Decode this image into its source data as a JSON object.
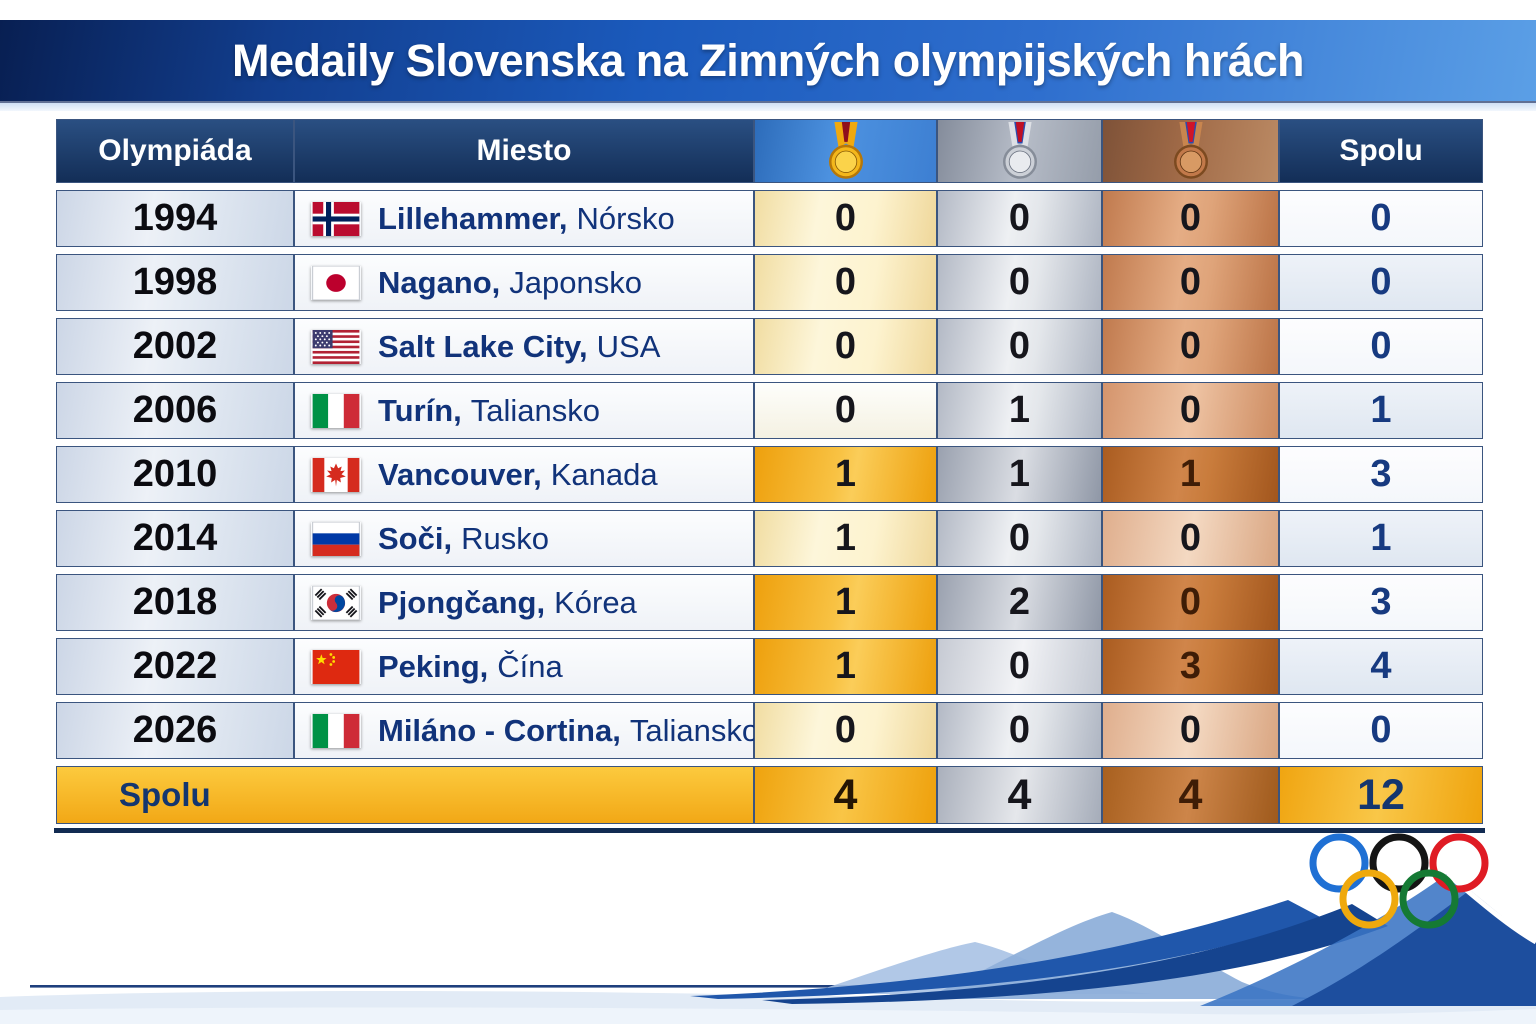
{
  "title": "Medaily Slovenska na Zimných olympijských hrách",
  "table": {
    "header": {
      "olympiad": "Olympiáda",
      "place": "Miesto",
      "total": "Spolu",
      "icons": {
        "gold": "gold-medal-icon",
        "silver": "silver-medal-icon",
        "bronze": "bronze-medal-icon"
      }
    },
    "rows": [
      {
        "year": "1994",
        "flag": "norway",
        "city": "Lillehammer",
        "country": "Nórsko",
        "gold": "0",
        "silver": "0",
        "bronze": "0",
        "total": "0",
        "tones": {
          "gold": "pale",
          "silver": "soft",
          "bronze": "soft"
        }
      },
      {
        "year": "1998",
        "flag": "japan",
        "city": "Nagano",
        "country": "Japonsko",
        "gold": "0",
        "silver": "0",
        "bronze": "0",
        "total": "0",
        "tones": {
          "gold": "pale",
          "silver": "soft",
          "bronze": "soft"
        }
      },
      {
        "year": "2002",
        "flag": "usa",
        "city": "Salt Lake City",
        "country": "USA",
        "gold": "0",
        "silver": "0",
        "bronze": "0",
        "total": "0",
        "tones": {
          "gold": "pale",
          "silver": "soft",
          "bronze": "soft"
        }
      },
      {
        "year": "2006",
        "flag": "italy",
        "city": "Turín",
        "country": "Taliansko",
        "gold": "0",
        "silver": "1",
        "bronze": "0",
        "total": "1",
        "tones": {
          "gold": "white",
          "silver": "soft",
          "bronze": "softlight"
        }
      },
      {
        "year": "2010",
        "flag": "canada",
        "city": "Vancouver",
        "country": "Kanada",
        "gold": "1",
        "silver": "1",
        "bronze": "1",
        "total": "3",
        "tones": {
          "gold": "strong",
          "silver": "dark",
          "bronze": "strong"
        }
      },
      {
        "year": "2014",
        "flag": "russia",
        "city": "Soči",
        "country": "Rusko",
        "gold": "1",
        "silver": "0",
        "bronze": "0",
        "total": "1",
        "tones": {
          "gold": "pale",
          "silver": "soft",
          "bronze": "pale"
        }
      },
      {
        "year": "2018",
        "flag": "south-korea",
        "city": "Pjongčang",
        "country": "Kórea",
        "gold": "1",
        "silver": "2",
        "bronze": "0",
        "total": "3",
        "tones": {
          "gold": "strong",
          "silver": "dark",
          "bronze": "strong"
        }
      },
      {
        "year": "2022",
        "flag": "china",
        "city": "Peking",
        "country": "Čína",
        "gold": "1",
        "silver": "0",
        "bronze": "3",
        "total": "4",
        "tones": {
          "gold": "strong",
          "silver": "softlight",
          "bronze": "strong"
        }
      },
      {
        "year": "2026",
        "flag": "italy",
        "city": "Miláno - Cortina",
        "country": "Taliansko",
        "gold": "0",
        "silver": "0",
        "bronze": "0",
        "total": "0",
        "tones": {
          "gold": "pale",
          "silver": "soft",
          "bronze": "pale"
        }
      }
    ],
    "total_row": {
      "label": "Spolu",
      "gold": "4",
      "silver": "4",
      "bronze": "4",
      "total": "12"
    }
  },
  "chart_data": {
    "type": "table",
    "title": "Medaily Slovenska na Zimných olympijských hrách",
    "columns": [
      "Olympiáda",
      "Miesto",
      "gold-medal-icon",
      "silver-medal-icon",
      "bronze-medal-icon",
      "Spolu"
    ],
    "rows": [
      [
        "1994",
        "Lillehammer, Nórsko",
        0,
        0,
        0,
        0
      ],
      [
        "1998",
        "Nagano, Japonsko",
        0,
        0,
        0,
        0
      ],
      [
        "2002",
        "Salt Lake City, USA",
        0,
        0,
        0,
        0
      ],
      [
        "2006",
        "Turín, Taliansko",
        0,
        1,
        0,
        1
      ],
      [
        "2010",
        "Vancouver, Kanada",
        1,
        1,
        1,
        3
      ],
      [
        "2014",
        "Soči, Rusko",
        1,
        0,
        0,
        1
      ],
      [
        "2018",
        "Pjongčang, Kórea",
        1,
        2,
        0,
        3
      ],
      [
        "2022",
        "Peking, Čína",
        1,
        0,
        3,
        4
      ],
      [
        "2026",
        "Miláno - Cortina, Taliansko",
        0,
        0,
        0,
        0
      ]
    ],
    "totals": [
      "Spolu",
      4,
      4,
      4,
      12
    ]
  },
  "colors": {
    "banner_blue": "#1b5abc",
    "header_navy": "#16355f",
    "gold": "#f3b71c",
    "silver": "#ccd0d7",
    "bronze": "#c2794a",
    "accent_text_navy": "#14366f"
  },
  "footer": {
    "olympic_rings_colors": {
      "blue": "#1f70d4",
      "black": "#151515",
      "red": "#df1b24",
      "yellow": "#efa90d",
      "green": "#157a34"
    }
  }
}
